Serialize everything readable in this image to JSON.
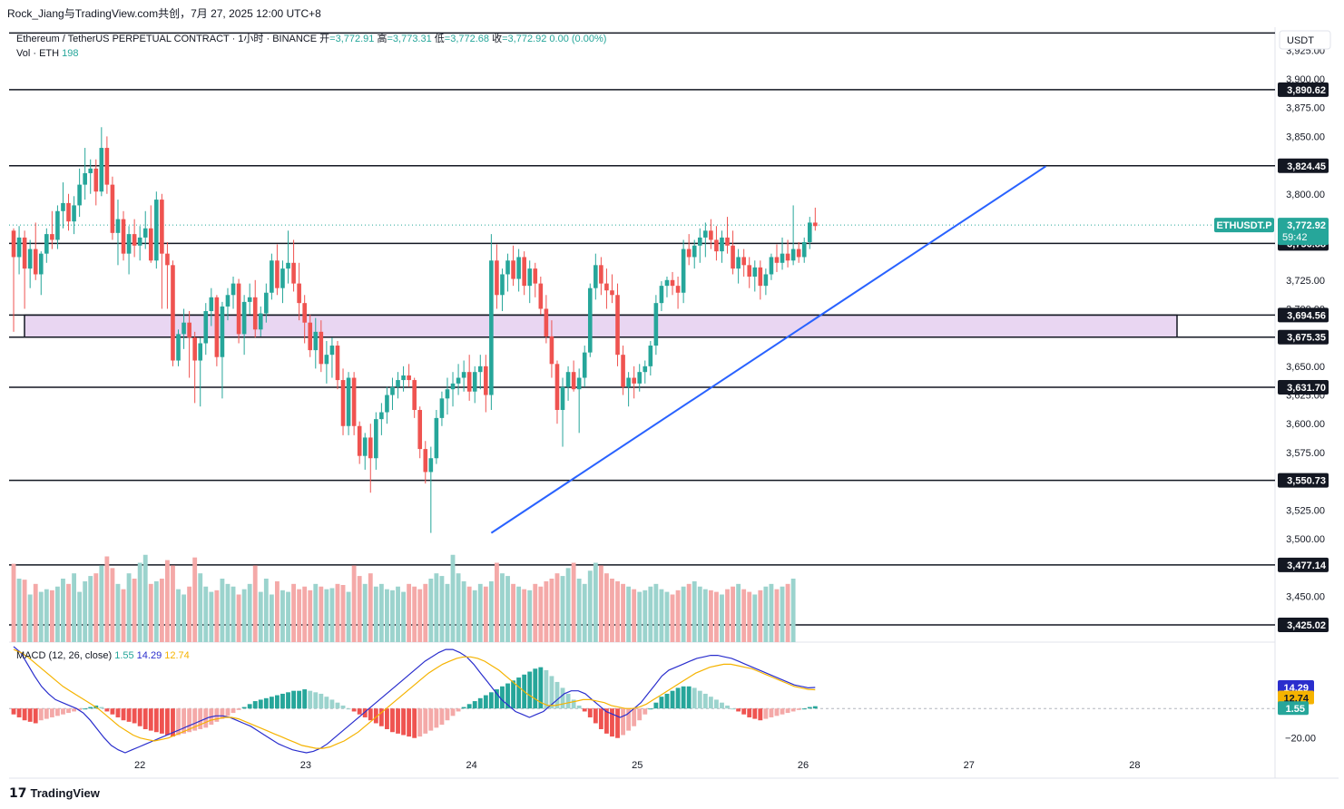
{
  "header": {
    "author_line": "Rock_Jiang与TradingView.com共创，7月 27, 2025 12:00 UTC+8"
  },
  "legend": {
    "symbol_title": "Ethereum / TetherUS PERPETUAL CONTRACT · 1小时 · BINANCE",
    "open_label": "开",
    "open_value": "=3,772.91",
    "high_label": "高",
    "high_value": "=3,773.31",
    "low_label": "低",
    "low_value": "=3,772.68",
    "close_label": "收",
    "close_value": "=3,772.92",
    "change": "0.00 (0.00%)",
    "vol_label": "Vol · ETH",
    "vol_value": "198"
  },
  "currency_label": "USDT",
  "macd_legend": {
    "label": "MACD (12, 26, close)",
    "hist": "1.55",
    "macd": "14.29",
    "signal": "12.74"
  },
  "footer": {
    "brand": "TradingView"
  },
  "colors": {
    "up": "#26a69a",
    "down": "#ef5350",
    "up_vol": "#9bd3cd",
    "down_vol": "#f4a9a8",
    "trendline": "#2962ff",
    "zone_fill": "#e9d6f2",
    "macd_line": "#2a2ecd",
    "signal_line": "#f5b300",
    "label_bg": "#131722"
  },
  "chart_data": {
    "type": "candlestick",
    "symbol": "ETHUSDT.P",
    "interval": "1小时",
    "price_axis": {
      "ylim": [
        3410,
        3945
      ],
      "ticks": [
        "3,925.00",
        "3,900.00",
        "3,875.00",
        "3,850.00",
        "3,800.00",
        "3,725.00",
        "3,700.00",
        "3,650.00",
        "3,625.00",
        "3,600.00",
        "3,575.00",
        "3,525.00",
        "3,500.00",
        "3,450.00"
      ],
      "tick_values": [
        3925,
        3900,
        3875,
        3850,
        3800,
        3725,
        3700,
        3650,
        3625,
        3600,
        3575,
        3525,
        3500,
        3450
      ]
    },
    "x_axis": {
      "labels": [
        "22",
        "23",
        "24",
        "25",
        "26",
        "27",
        "28"
      ]
    },
    "horizontal_levels": [
      {
        "value": 3890.62,
        "label": "3,890.62"
      },
      {
        "value": 3824.45,
        "label": "3,824.45"
      },
      {
        "value": 3756.88,
        "label": "3,756.88"
      },
      {
        "value": 3631.7,
        "label": "3,631.70"
      },
      {
        "value": 3550.73,
        "label": "3,550.73"
      },
      {
        "value": 3477.14,
        "label": "3,477.14"
      },
      {
        "value": 3425.02,
        "label": "3,425.02"
      }
    ],
    "top_line_value": 3940,
    "zone": {
      "top": 3694.56,
      "bottom": 3675.35,
      "top_label": "3,694.56",
      "bottom_label": "3,675.35"
    },
    "last_price": {
      "value": 3772.92,
      "label": "3,772.92",
      "symbol": "ETHUSDT.P",
      "countdown": "59:42"
    },
    "trendline": {
      "start": {
        "bar": 87,
        "price": 3505
      },
      "end": {
        "bar": 188,
        "price": 3824
      }
    },
    "candles": [
      [
        3768,
        3770,
        3680,
        3745
      ],
      [
        3745,
        3772,
        3730,
        3762
      ],
      [
        3762,
        3768,
        3700,
        3735
      ],
      [
        3735,
        3760,
        3718,
        3752
      ],
      [
        3752,
        3775,
        3725,
        3730
      ],
      [
        3730,
        3750,
        3712,
        3748
      ],
      [
        3748,
        3770,
        3740,
        3765
      ],
      [
        3765,
        3785,
        3752,
        3760
      ],
      [
        3760,
        3790,
        3752,
        3785
      ],
      [
        3785,
        3810,
        3770,
        3792
      ],
      [
        3792,
        3800,
        3768,
        3776
      ],
      [
        3776,
        3798,
        3765,
        3790
      ],
      [
        3790,
        3822,
        3780,
        3808
      ],
      [
        3808,
        3840,
        3795,
        3818
      ],
      [
        3818,
        3830,
        3800,
        3822
      ],
      [
        3822,
        3830,
        3790,
        3802
      ],
      [
        3802,
        3858,
        3798,
        3840
      ],
      [
        3840,
        3850,
        3800,
        3808
      ],
      [
        3808,
        3815,
        3760,
        3766
      ],
      [
        3766,
        3795,
        3738,
        3778
      ],
      [
        3778,
        3785,
        3742,
        3748
      ],
      [
        3748,
        3772,
        3730,
        3765
      ],
      [
        3765,
        3778,
        3745,
        3755
      ],
      [
        3755,
        3772,
        3742,
        3762
      ],
      [
        3762,
        3785,
        3752,
        3770
      ],
      [
        3770,
        3790,
        3740,
        3742
      ],
      [
        3742,
        3802,
        3735,
        3795
      ],
      [
        3795,
        3800,
        3700,
        3748
      ],
      [
        3748,
        3758,
        3700,
        3738
      ],
      [
        3738,
        3742,
        3650,
        3655
      ],
      [
        3655,
        3682,
        3650,
        3678
      ],
      [
        3678,
        3700,
        3665,
        3688
      ],
      [
        3688,
        3698,
        3640,
        3675
      ],
      [
        3675,
        3680,
        3618,
        3655
      ],
      [
        3655,
        3675,
        3615,
        3670
      ],
      [
        3670,
        3705,
        3660,
        3698
      ],
      [
        3698,
        3718,
        3685,
        3710
      ],
      [
        3710,
        3712,
        3650,
        3658
      ],
      [
        3658,
        3706,
        3622,
        3702
      ],
      [
        3702,
        3718,
        3690,
        3712
      ],
      [
        3712,
        3728,
        3700,
        3722
      ],
      [
        3722,
        3726,
        3670,
        3678
      ],
      [
        3678,
        3712,
        3660,
        3706
      ],
      [
        3706,
        3722,
        3695,
        3710
      ],
      [
        3710,
        3725,
        3675,
        3682
      ],
      [
        3682,
        3702,
        3676,
        3696
      ],
      [
        3696,
        3722,
        3688,
        3714
      ],
      [
        3714,
        3748,
        3708,
        3742
      ],
      [
        3742,
        3756,
        3712,
        3718
      ],
      [
        3718,
        3742,
        3705,
        3735
      ],
      [
        3735,
        3768,
        3722,
        3740
      ],
      [
        3740,
        3760,
        3715,
        3722
      ],
      [
        3722,
        3740,
        3690,
        3705
      ],
      [
        3705,
        3712,
        3670,
        3688
      ],
      [
        3688,
        3695,
        3658,
        3664
      ],
      [
        3664,
        3692,
        3648,
        3680
      ],
      [
        3680,
        3690,
        3645,
        3652
      ],
      [
        3652,
        3672,
        3635,
        3660
      ],
      [
        3660,
        3675,
        3640,
        3668
      ],
      [
        3668,
        3672,
        3630,
        3638
      ],
      [
        3638,
        3648,
        3590,
        3598
      ],
      [
        3598,
        3645,
        3590,
        3640
      ],
      [
        3640,
        3645,
        3590,
        3598
      ],
      [
        3598,
        3602,
        3565,
        3572
      ],
      [
        3572,
        3592,
        3560,
        3588
      ],
      [
        3588,
        3600,
        3540,
        3570
      ],
      [
        3570,
        3610,
        3560,
        3604
      ],
      [
        3604,
        3618,
        3590,
        3610
      ],
      [
        3610,
        3632,
        3600,
        3625
      ],
      [
        3625,
        3640,
        3612,
        3632
      ],
      [
        3632,
        3645,
        3622,
        3638
      ],
      [
        3638,
        3650,
        3628,
        3642
      ],
      [
        3642,
        3652,
        3632,
        3638
      ],
      [
        3638,
        3640,
        3605,
        3612
      ],
      [
        3612,
        3615,
        3570,
        3578
      ],
      [
        3578,
        3585,
        3548,
        3558
      ],
      [
        3558,
        3580,
        3505,
        3570
      ],
      [
        3570,
        3612,
        3565,
        3605
      ],
      [
        3605,
        3628,
        3598,
        3622
      ],
      [
        3622,
        3640,
        3608,
        3630
      ],
      [
        3630,
        3645,
        3615,
        3635
      ],
      [
        3635,
        3652,
        3625,
        3640
      ],
      [
        3640,
        3655,
        3628,
        3645
      ],
      [
        3645,
        3660,
        3620,
        3628
      ],
      [
        3628,
        3650,
        3618,
        3645
      ],
      [
        3645,
        3660,
        3630,
        3650
      ],
      [
        3650,
        3660,
        3610,
        3625
      ],
      [
        3625,
        3765,
        3612,
        3742
      ],
      [
        3742,
        3756,
        3700,
        3712
      ],
      [
        3712,
        3735,
        3698,
        3730
      ],
      [
        3730,
        3748,
        3715,
        3742
      ],
      [
        3742,
        3755,
        3720,
        3726
      ],
      [
        3726,
        3752,
        3715,
        3745
      ],
      [
        3745,
        3750,
        3712,
        3720
      ],
      [
        3720,
        3742,
        3705,
        3735
      ],
      [
        3735,
        3740,
        3710,
        3722
      ],
      [
        3722,
        3728,
        3695,
        3700
      ],
      [
        3700,
        3712,
        3670,
        3676
      ],
      [
        3676,
        3690,
        3640,
        3652
      ],
      [
        3652,
        3655,
        3600,
        3612
      ],
      [
        3612,
        3640,
        3580,
        3632
      ],
      [
        3632,
        3650,
        3620,
        3645
      ],
      [
        3645,
        3655,
        3628,
        3630
      ],
      [
        3630,
        3648,
        3592,
        3640
      ],
      [
        3640,
        3668,
        3632,
        3662
      ],
      [
        3662,
        3722,
        3658,
        3718
      ],
      [
        3718,
        3748,
        3708,
        3738
      ],
      [
        3738,
        3745,
        3712,
        3722
      ],
      [
        3722,
        3735,
        3700,
        3716
      ],
      [
        3716,
        3730,
        3705,
        3712
      ],
      [
        3712,
        3722,
        3650,
        3660
      ],
      [
        3660,
        3668,
        3625,
        3632
      ],
      [
        3632,
        3645,
        3615,
        3640
      ],
      [
        3640,
        3650,
        3622,
        3635
      ],
      [
        3635,
        3652,
        3628,
        3645
      ],
      [
        3645,
        3655,
        3635,
        3650
      ],
      [
        3650,
        3672,
        3642,
        3668
      ],
      [
        3668,
        3712,
        3660,
        3705
      ],
      [
        3705,
        3724,
        3698,
        3720
      ],
      [
        3720,
        3728,
        3710,
        3725
      ],
      [
        3725,
        3732,
        3712,
        3720
      ],
      [
        3720,
        3728,
        3700,
        3714
      ],
      [
        3714,
        3760,
        3705,
        3752
      ],
      [
        3752,
        3765,
        3738,
        3745
      ],
      [
        3745,
        3760,
        3735,
        3755
      ],
      [
        3755,
        3770,
        3740,
        3762
      ],
      [
        3762,
        3775,
        3745,
        3768
      ],
      [
        3768,
        3778,
        3752,
        3760
      ],
      [
        3760,
        3772,
        3742,
        3750
      ],
      [
        3750,
        3768,
        3740,
        3762
      ],
      [
        3762,
        3780,
        3748,
        3755
      ],
      [
        3755,
        3768,
        3730,
        3735
      ],
      [
        3735,
        3752,
        3722,
        3745
      ],
      [
        3745,
        3752,
        3728,
        3738
      ],
      [
        3738,
        3745,
        3718,
        3728
      ],
      [
        3728,
        3742,
        3715,
        3736
      ],
      [
        3736,
        3742,
        3708,
        3720
      ],
      [
        3720,
        3735,
        3712,
        3730
      ],
      [
        3730,
        3748,
        3725,
        3745
      ],
      [
        3745,
        3756,
        3732,
        3740
      ],
      [
        3740,
        3762,
        3734,
        3748
      ],
      [
        3748,
        3760,
        3736,
        3742
      ],
      [
        3742,
        3790,
        3738,
        3752
      ],
      [
        3752,
        3758,
        3740,
        3745
      ],
      [
        3745,
        3762,
        3740,
        3758
      ],
      [
        3758,
        3780,
        3752,
        3775
      ],
      [
        3775,
        3788,
        3768,
        3772
      ]
    ],
    "volume_scale_max": 3000,
    "volumes": [
      1480,
      1200,
      1180,
      900,
      1100,
      950,
      1000,
      980,
      1050,
      1200,
      1100,
      1300,
      950,
      1150,
      1250,
      1300,
      1450,
      1620,
      1400,
      1100,
      1000,
      1300,
      1200,
      1500,
      1650,
      1100,
      1150,
      1200,
      1550,
      1450,
      1000,
      900,
      1050,
      1600,
      1300,
      1050,
      950,
      980,
      1200,
      1100,
      1050,
      900,
      1000,
      1100,
      1450,
      950,
      1200,
      900,
      1150,
      980,
      950,
      1100,
      1000,
      1050,
      980,
      1100,
      1050,
      1000,
      1020,
      1100,
      1080,
      950,
      1450,
      1250,
      1100,
      1300,
      1050,
      1100,
      1000,
      980,
      1050,
      950,
      1100,
      1050,
      1000,
      1100,
      1200,
      1300,
      1250,
      1100,
      1650,
      1300,
      1150,
      1050,
      980,
      1100,
      1050,
      1150,
      1500,
      1300,
      1250,
      1100,
      1050,
      1000,
      980,
      1100,
      1050,
      1150,
      1200,
      1300,
      1250,
      1400,
      1500,
      1200,
      1100,
      1350,
      1500,
      1450,
      1300,
      1200,
      1150,
      1100,
      1050,
      1000,
      950,
      980,
      1050,
      1100,
      1000,
      950,
      900,
      980,
      1050,
      1100,
      1150,
      1050,
      1000,
      980,
      950,
      900,
      1000,
      1050,
      1100,
      1000,
      950,
      900,
      980,
      1050,
      1100,
      1000,
      1050,
      1100,
      1200
    ],
    "macd": {
      "ylim": [
        -30,
        45
      ],
      "tick_label": "−20.00",
      "tick_value": -20,
      "histogram": [
        -4,
        -6,
        -8,
        -9,
        -10,
        -8,
        -7,
        -6,
        -5,
        -4,
        -3,
        -2,
        -1,
        0,
        1,
        2,
        1,
        -2,
        -4,
        -6,
        -8,
        -9,
        -10,
        -12,
        -14,
        -15,
        -16,
        -17,
        -18,
        -19,
        -18,
        -17,
        -16,
        -15,
        -14,
        -13,
        -11,
        -9,
        -7,
        -5,
        -3,
        -1,
        1,
        3,
        5,
        6,
        7,
        8,
        9,
        10,
        11,
        12,
        12,
        13,
        12,
        11,
        10,
        8,
        6,
        4,
        2,
        0,
        -2,
        -4,
        -6,
        -8,
        -10,
        -12,
        -14,
        -16,
        -17,
        -18,
        -19,
        -20,
        -19,
        -17,
        -15,
        -13,
        -11,
        -8,
        -5,
        -2,
        1,
        3,
        5,
        7,
        9,
        11,
        13,
        15,
        17,
        19,
        21,
        23,
        25,
        27,
        28,
        26,
        22,
        18,
        14,
        10,
        6,
        2,
        -2,
        -6,
        -10,
        -14,
        -17,
        -19,
        -20,
        -18,
        -15,
        -12,
        -8,
        -4,
        0,
        4,
        8,
        10,
        12,
        14,
        15,
        15,
        14,
        12,
        10,
        8,
        6,
        4,
        2,
        0,
        -2,
        -4,
        -6,
        -7,
        -8,
        -7,
        -6,
        -5,
        -4,
        -3,
        -2,
        -1,
        0,
        1,
        1.55
      ],
      "macd_line": [
        42,
        38,
        30,
        22,
        15,
        10,
        6,
        4,
        2,
        0,
        -3,
        -8,
        -14,
        -20,
        -25,
        -28,
        -30,
        -28,
        -26,
        -24,
        -22,
        -20,
        -18,
        -16,
        -14,
        -12,
        -10,
        -8,
        -6,
        -5,
        -5,
        -6,
        -8,
        -10,
        -12,
        -15,
        -18,
        -21,
        -24,
        -26,
        -28,
        -29,
        -30,
        -29,
        -27,
        -24,
        -20,
        -16,
        -12,
        -8,
        -4,
        0,
        4,
        8,
        12,
        16,
        20,
        24,
        28,
        32,
        35,
        38,
        40,
        40,
        38,
        35,
        30,
        24,
        18,
        12,
        6,
        2,
        -2,
        -4,
        -6,
        -4,
        -2,
        2,
        6,
        10,
        12,
        12,
        10,
        6,
        2,
        -2,
        -4,
        -6,
        -4,
        0,
        4,
        10,
        16,
        22,
        26,
        28,
        30,
        32,
        34,
        35,
        36,
        36,
        35,
        34,
        32,
        30,
        28,
        26,
        24,
        22,
        20,
        18,
        16,
        15,
        14,
        14.29
      ],
      "signal_line": [
        40,
        38,
        35,
        31,
        27,
        23,
        19,
        15,
        12,
        9,
        6,
        3,
        0,
        -4,
        -8,
        -12,
        -15,
        -18,
        -20,
        -21,
        -22,
        -21,
        -20,
        -18,
        -16,
        -14,
        -12,
        -10,
        -8,
        -7,
        -6,
        -6,
        -7,
        -9,
        -11,
        -13,
        -15,
        -17,
        -19,
        -21,
        -23,
        -25,
        -26,
        -27,
        -27,
        -26,
        -24,
        -22,
        -19,
        -16,
        -12,
        -8,
        -4,
        0,
        4,
        8,
        12,
        16,
        20,
        24,
        27,
        30,
        32,
        34,
        35,
        35,
        34,
        32,
        29,
        26,
        22,
        18,
        14,
        10,
        7,
        4,
        2,
        2,
        3,
        4,
        5,
        6,
        6,
        5,
        4,
        2,
        1,
        0,
        0,
        1,
        3,
        6,
        9,
        12,
        15,
        18,
        21,
        24,
        26,
        28,
        29,
        30,
        30,
        29,
        28,
        27,
        25,
        23,
        21,
        19,
        17,
        15,
        14,
        13,
        12.74
      ]
    }
  }
}
